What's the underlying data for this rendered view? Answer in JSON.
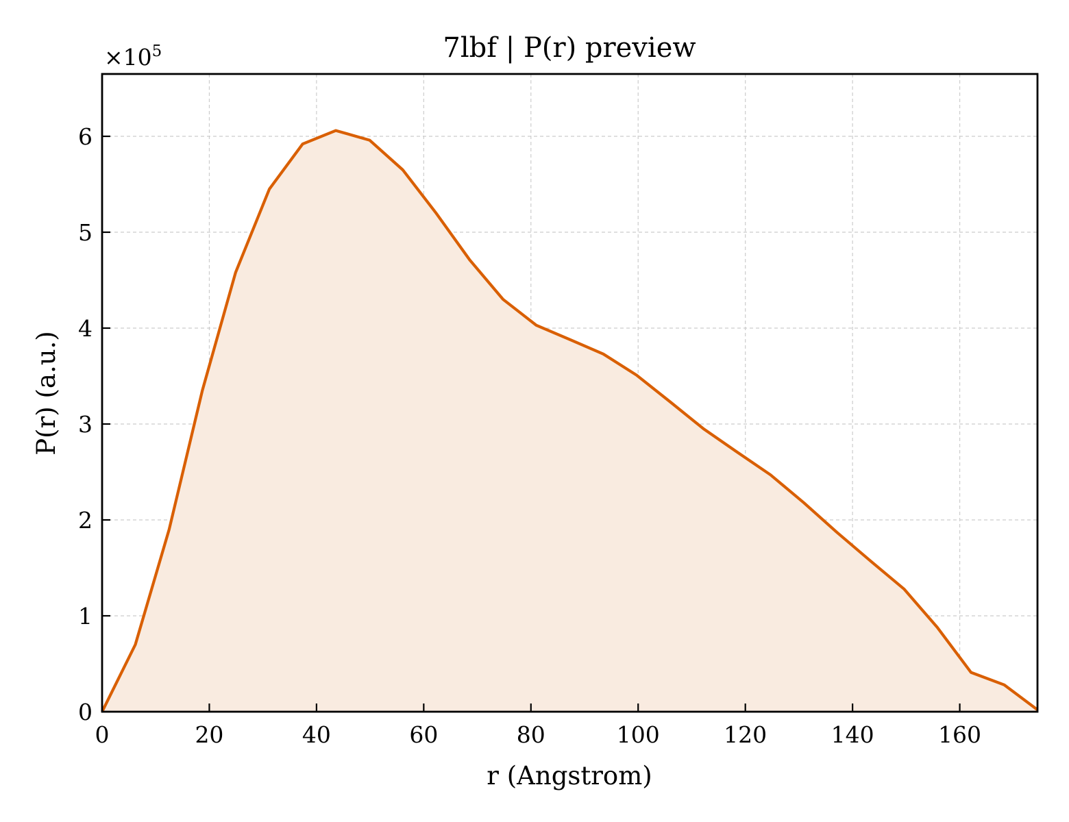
{
  "chart_data": {
    "type": "area",
    "title": "7lbf | P(r) preview",
    "xlabel": "r (Angstrom)",
    "ylabel": "P(r) (a.u.)",
    "y_multiplier": "×10",
    "y_multiplier_exp": "5",
    "xlim": [
      0,
      174.5
    ],
    "ylim": [
      0,
      6.65
    ],
    "xticks": [
      "0",
      "20",
      "40",
      "60",
      "80",
      "100",
      "120",
      "140",
      "160"
    ],
    "yticks": [
      "0",
      "1",
      "2",
      "3",
      "4",
      "5",
      "6"
    ],
    "grid": true,
    "series": [
      {
        "color": "#d95f02",
        "fill": "#f9ebe0",
        "x": [
          0,
          6.2,
          12.5,
          18.7,
          24.9,
          31.2,
          37.4,
          43.6,
          49.9,
          56.1,
          62.3,
          68.6,
          74.8,
          81.0,
          87.3,
          93.5,
          99.7,
          106.0,
          112.2,
          118.4,
          124.7,
          130.9,
          137.1,
          143.4,
          149.6,
          155.8,
          162.1,
          168.3,
          174.5
        ],
        "values": [
          0.0,
          0.7,
          1.9,
          3.35,
          4.58,
          5.45,
          5.92,
          6.06,
          5.96,
          5.65,
          5.2,
          4.71,
          4.3,
          4.03,
          3.88,
          3.73,
          3.51,
          3.23,
          2.95,
          2.71,
          2.47,
          2.18,
          1.87,
          1.57,
          1.28,
          0.88,
          0.41,
          0.28,
          0.02
        ]
      }
    ]
  }
}
